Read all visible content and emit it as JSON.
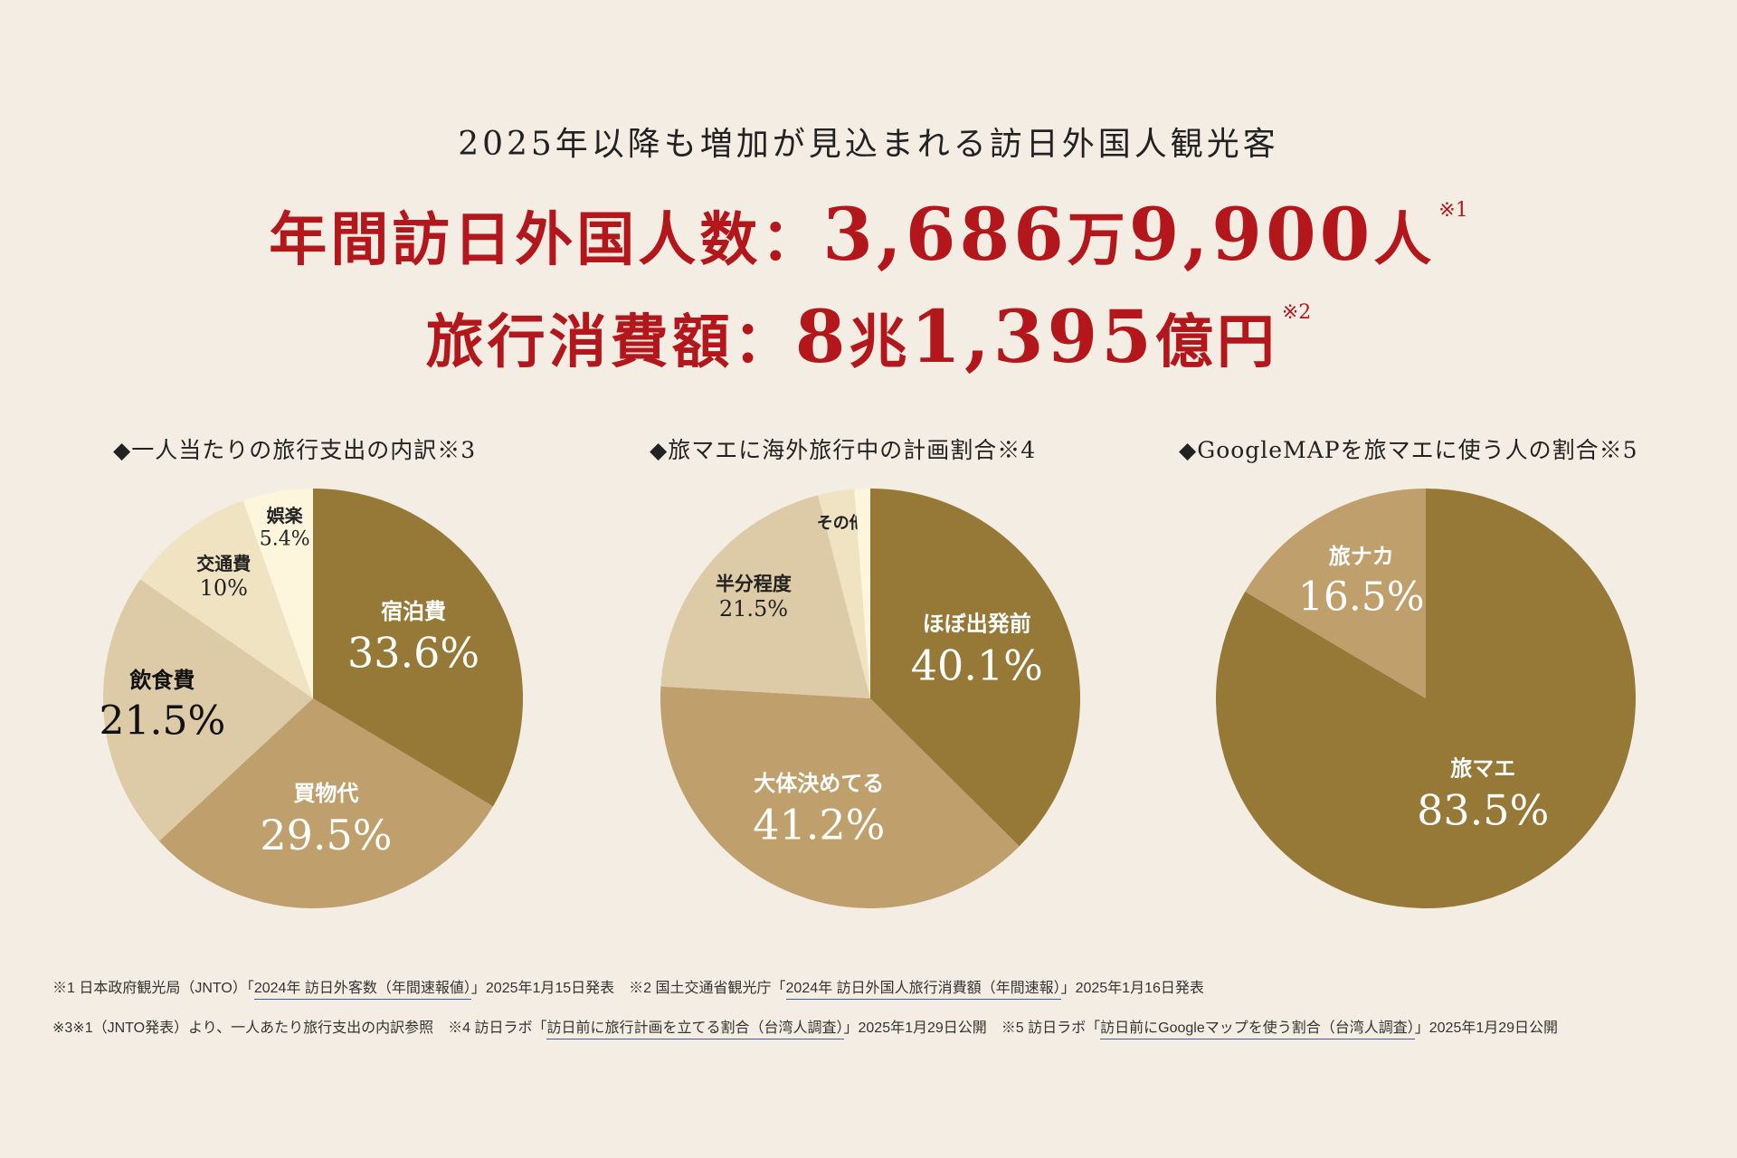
{
  "header": {
    "subtitle": "2025年以降も増加が見込まれる訪日外国人観光客",
    "visitors_label": "年間訪日外国人数：",
    "visitors_value_a": "3,686",
    "visitors_unit_a": "万",
    "visitors_value_b": "9,900",
    "visitors_unit_b": "人",
    "visitors_note": "※1",
    "spending_label": "旅行消費額：",
    "spending_value_a": "8",
    "spending_unit_a": "兆",
    "spending_value_b": "1,395",
    "spending_unit_b": "億円",
    "spending_note": "※2"
  },
  "chart_data": [
    {
      "type": "pie",
      "title": "◆一人当たりの旅行支出の内訳※3",
      "slices": [
        {
          "label": "宿泊費",
          "value": 33.6,
          "display": "33.6%",
          "color": "#967837"
        },
        {
          "label": "買物代",
          "value": 29.5,
          "display": "29.5%",
          "color": "#bf9f6b"
        },
        {
          "label": "飲食費",
          "value": 21.5,
          "display": "21.5%",
          "color": "#dccba6"
        },
        {
          "label": "交通費",
          "value": 10,
          "display": "10%",
          "color": "#f0e3c2"
        },
        {
          "label": "娯楽",
          "value": 5.4,
          "display": "5.4%",
          "color": "#fdf5dc"
        }
      ]
    },
    {
      "type": "pie",
      "title": "◆旅マエに海外旅行中の計画割合※4",
      "slices": [
        {
          "label": "ほぼ出発前",
          "value": 40.1,
          "display": "40.1%",
          "color": "#967837"
        },
        {
          "label": "大体決めてる",
          "value": 41.2,
          "display": "41.2%",
          "color": "#bf9f6b"
        },
        {
          "label": "半分程度",
          "value": 21.5,
          "display": "21.5%",
          "color": "#dccba6"
        },
        {
          "label": "その他",
          "value": 3.0,
          "display": "",
          "color": "#f0e3c2"
        },
        {
          "label": "",
          "value": 1.3,
          "display": "",
          "color": "#fdf5dc"
        }
      ]
    },
    {
      "type": "pie",
      "title": "◆GoogleMAPを旅マエに使う人の割合※5",
      "slices": [
        {
          "label": "旅マエ",
          "value": 83.5,
          "display": "83.5%",
          "color": "#967837"
        },
        {
          "label": "旅ナカ",
          "value": 16.5,
          "display": "16.5%",
          "color": "#bf9f6b"
        }
      ]
    }
  ],
  "footnotes": {
    "n1_prefix": "※1 日本政府観光局（JNTO）「",
    "n1_link": "2024年 訪日外客数（年間速報値）",
    "n1_suffix": "」2025年1月15日発表　※2 国土交通省観光庁「",
    "n2_link": "2024年 訪日外国人旅行消費額（年間速報）",
    "n2_suffix": "」2025年1月16日発表",
    "n3": "※3※1（JNTO発表）より、一人あたり旅行支出の内訳参照　※4 訪日ラボ「",
    "n4_link": "訪日前に旅行計画を立てる割合（台湾人調査）",
    "n4_suffix": "」2025年1月29日公開　※5 訪日ラボ「",
    "n5_link": "訪日前にGoogleマップを使う割合（台湾人調査）",
    "n5_suffix": "」2025年1月29日公開"
  }
}
